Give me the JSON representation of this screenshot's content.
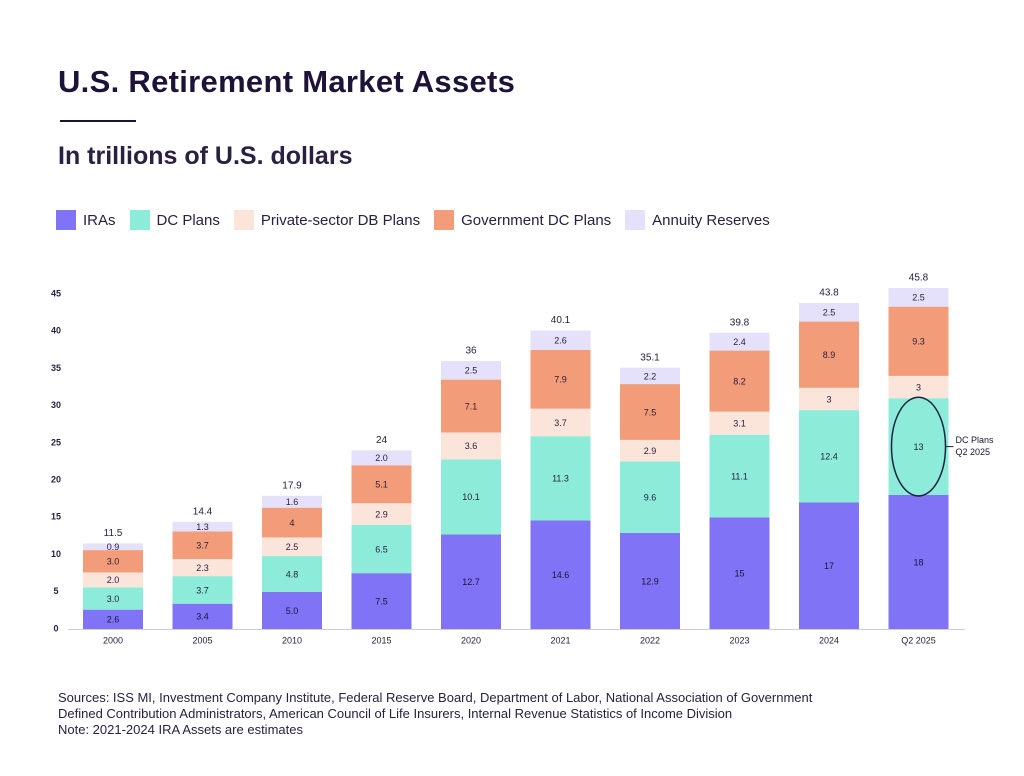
{
  "header": {
    "title": "U.S. Retirement Market Assets",
    "subtitle": "In trillions of U.S. dollars"
  },
  "colors": {
    "IRAs": "#8173f6",
    "DC Plans": "#8cecd9",
    "Private-sector DB Plans": "#fbe4da",
    "Government DC Plans": "#f29c79",
    "Annuity Reserves": "#e5e1fa",
    "highlight": "#1d2140"
  },
  "legend": [
    {
      "label": "IRAs",
      "color": "#8173f6"
    },
    {
      "label": "DC Plans",
      "color": "#8cecd9"
    },
    {
      "label": "Private-sector DB Plans",
      "color": "#fbe4da"
    },
    {
      "label": "Government DC Plans",
      "color": "#f29c79"
    },
    {
      "label": "Annuity Reserves",
      "color": "#e5e1fa"
    }
  ],
  "chart_data": {
    "type": "bar",
    "stacked": true,
    "categories": [
      "2000",
      "2005",
      "2010",
      "2015",
      "2020",
      "2021",
      "2022",
      "2023",
      "2024",
      "Q2 2025"
    ],
    "series": [
      {
        "name": "IRAs",
        "values": [
          2.6,
          3.4,
          5.0,
          7.5,
          12.7,
          14.6,
          12.9,
          15,
          17,
          18
        ],
        "labels": [
          "2.6",
          "3.4",
          "5.0",
          "7.5",
          "12.7",
          "14.6",
          "12.9",
          "15",
          "17",
          "18"
        ]
      },
      {
        "name": "DC Plans",
        "values": [
          3.0,
          3.7,
          4.8,
          6.5,
          10.1,
          11.3,
          9.6,
          11.1,
          12.4,
          13
        ],
        "labels": [
          "3.0",
          "3.7",
          "4.8",
          "6.5",
          "10.1",
          "11.3",
          "9.6",
          "11.1",
          "12.4",
          "13"
        ]
      },
      {
        "name": "Private-sector DB Plans",
        "values": [
          2.0,
          2.3,
          2.5,
          2.9,
          3.6,
          3.7,
          2.9,
          3.1,
          3,
          3
        ],
        "labels": [
          "2.0",
          "2.3",
          "2.5",
          "2.9",
          "3.6",
          "3.7",
          "2.9",
          "3.1",
          "3",
          "3"
        ]
      },
      {
        "name": "Government DC Plans",
        "values": [
          3.0,
          3.7,
          4,
          5.1,
          7.1,
          7.9,
          7.5,
          8.2,
          8.9,
          9.3
        ],
        "labels": [
          "3.0",
          "3.7",
          "4",
          "5.1",
          "7.1",
          "7.9",
          "7.5",
          "8.2",
          "8.9",
          "9.3"
        ]
      },
      {
        "name": "Annuity Reserves",
        "values": [
          0.9,
          1.3,
          1.6,
          2.0,
          2.5,
          2.6,
          2.2,
          2.4,
          2.5,
          2.5
        ],
        "labels": [
          "0.9",
          "1.3",
          "1.6",
          "2.0",
          "2.5",
          "2.6",
          "2.2",
          "2.4",
          "2.5",
          "2.5"
        ]
      }
    ],
    "totals": [
      "11.5",
      "14.4",
      "17.9",
      "24",
      "36",
      "40.1",
      "35.1",
      "39.8",
      "43.8",
      "45.8"
    ],
    "ylim": [
      0,
      45
    ],
    "yticks": [
      "0",
      "5",
      "10",
      "15",
      "20",
      "25",
      "30",
      "35",
      "40",
      "45"
    ],
    "ytick_values": [
      0,
      5,
      10,
      15,
      20,
      25,
      30,
      35,
      40,
      45
    ],
    "xlabel": "",
    "ylabel": "",
    "annotation": {
      "category": "Q2 2025",
      "series": "DC Plans",
      "lines": [
        "DC Plans",
        "Q2 2025"
      ]
    }
  },
  "footer": {
    "lines": [
      "Sources: ISS MI, Investment Company Institute, Federal Reserve Board, Department of Labor, National Association of Government",
      "Defined Contribution Administrators, American Council of Life Insurers, Internal Revenue Statistics of Income Division",
      "Note: 2021-2024 IRA Assets are estimates"
    ]
  }
}
